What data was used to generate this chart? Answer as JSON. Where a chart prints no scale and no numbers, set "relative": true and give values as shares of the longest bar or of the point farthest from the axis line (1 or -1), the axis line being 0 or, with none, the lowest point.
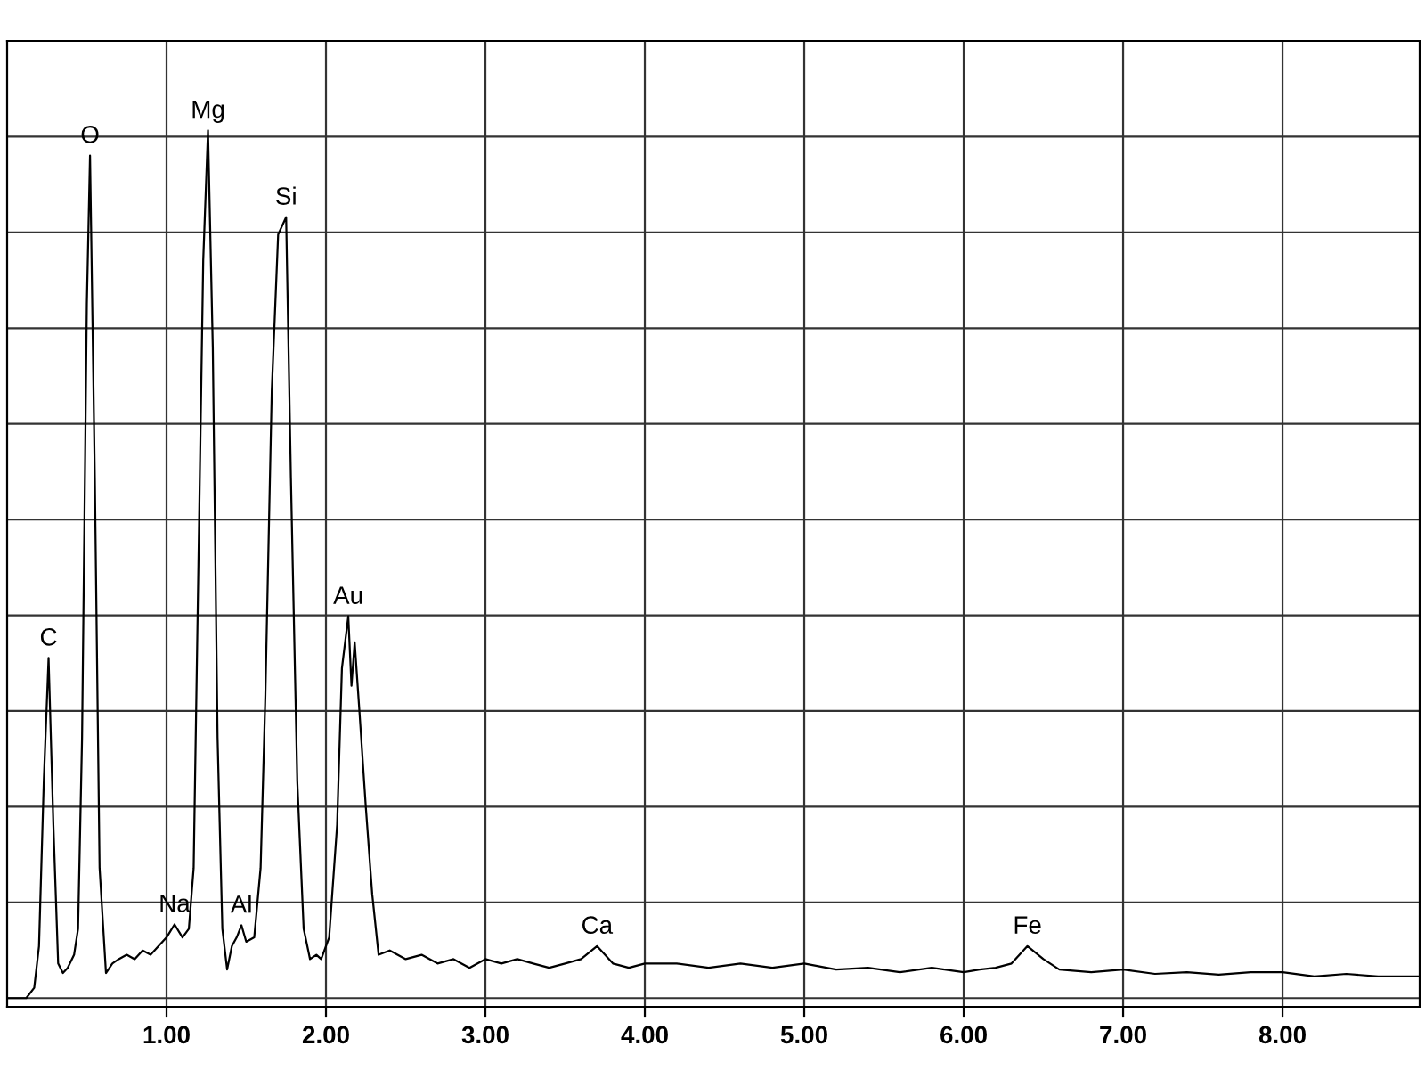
{
  "chart_data": {
    "type": "line",
    "relative": true,
    "grid": true,
    "tick_labels": "x",
    "xlim": [
      0,
      8.86
    ],
    "xticks": [
      {
        "value": 1,
        "label": "1.00"
      },
      {
        "value": 2,
        "label": "2.00"
      },
      {
        "value": 3,
        "label": "3.00"
      },
      {
        "value": 4,
        "label": "4.00"
      },
      {
        "value": 5,
        "label": "5.00"
      },
      {
        "value": 6,
        "label": "6.00"
      },
      {
        "value": 7,
        "label": "7.00"
      },
      {
        "value": 8,
        "label": "8.00"
      }
    ],
    "series": [
      {
        "color": "#000000",
        "x": [
          0.0,
          0.12,
          0.17,
          0.2,
          0.23,
          0.26,
          0.29,
          0.32,
          0.35,
          0.38,
          0.42,
          0.445,
          0.47,
          0.5,
          0.52,
          0.55,
          0.58,
          0.62,
          0.66,
          0.7,
          0.75,
          0.8,
          0.85,
          0.9,
          0.95,
          1.0,
          1.05,
          1.1,
          1.14,
          1.17,
          1.2,
          1.23,
          1.26,
          1.29,
          1.32,
          1.35,
          1.38,
          1.41,
          1.44,
          1.47,
          1.5,
          1.55,
          1.59,
          1.62,
          1.66,
          1.7,
          1.75,
          1.78,
          1.82,
          1.86,
          1.9,
          1.94,
          1.97,
          2.02,
          2.07,
          2.1,
          2.14,
          2.16,
          2.18,
          2.21,
          2.25,
          2.29,
          2.33,
          2.4,
          2.5,
          2.6,
          2.7,
          2.8,
          2.9,
          3.0,
          3.1,
          3.2,
          3.3,
          3.4,
          3.5,
          3.6,
          3.7,
          3.8,
          3.9,
          4.0,
          4.2,
          4.4,
          4.6,
          4.8,
          5.0,
          5.2,
          5.4,
          5.6,
          5.8,
          6.0,
          6.1,
          6.2,
          6.3,
          6.4,
          6.5,
          6.6,
          6.8,
          7.0,
          7.2,
          7.4,
          7.6,
          7.8,
          8.0,
          8.2,
          8.4,
          8.6,
          8.86
        ],
        "values": [
          0.0,
          0.0,
          0.012,
          0.06,
          0.25,
          0.392,
          0.2,
          0.04,
          0.029,
          0.035,
          0.05,
          0.08,
          0.3,
          0.8,
          0.971,
          0.6,
          0.15,
          0.029,
          0.04,
          0.045,
          0.05,
          0.045,
          0.055,
          0.05,
          0.06,
          0.07,
          0.085,
          0.07,
          0.08,
          0.15,
          0.5,
          0.85,
          1.0,
          0.75,
          0.3,
          0.08,
          0.033,
          0.06,
          0.07,
          0.084,
          0.065,
          0.07,
          0.15,
          0.35,
          0.7,
          0.88,
          0.9,
          0.6,
          0.25,
          0.08,
          0.045,
          0.05,
          0.045,
          0.07,
          0.2,
          0.38,
          0.44,
          0.36,
          0.41,
          0.33,
          0.22,
          0.12,
          0.05,
          0.055,
          0.045,
          0.05,
          0.04,
          0.045,
          0.035,
          0.045,
          0.04,
          0.045,
          0.04,
          0.035,
          0.04,
          0.045,
          0.06,
          0.04,
          0.035,
          0.04,
          0.04,
          0.035,
          0.04,
          0.035,
          0.04,
          0.033,
          0.035,
          0.03,
          0.035,
          0.03,
          0.033,
          0.035,
          0.04,
          0.06,
          0.045,
          0.033,
          0.03,
          0.033,
          0.028,
          0.03,
          0.027,
          0.03,
          0.03,
          0.025,
          0.028,
          0.025,
          0.025
        ]
      }
    ],
    "annotations": [
      {
        "text": "C",
        "x": 0.26,
        "y": 0.392
      },
      {
        "text": "O",
        "x": 0.52,
        "y": 0.971
      },
      {
        "text": "Na",
        "x": 1.05,
        "y": 0.085
      },
      {
        "text": "Mg",
        "x": 1.26,
        "y": 1.0
      },
      {
        "text": "Al",
        "x": 1.47,
        "y": 0.084
      },
      {
        "text": "Si",
        "x": 1.75,
        "y": 0.9
      },
      {
        "text": "Au",
        "x": 2.14,
        "y": 0.44
      },
      {
        "text": "Ca",
        "x": 3.7,
        "y": 0.06
      },
      {
        "text": "Fe",
        "x": 6.4,
        "y": 0.06
      }
    ]
  }
}
